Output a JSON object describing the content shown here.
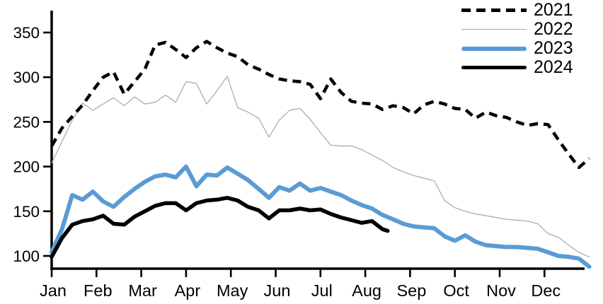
{
  "chart_data": {
    "type": "line",
    "title": "",
    "xlabel": "",
    "ylabel": "",
    "x_unit": "months, 0 = start of January, 12 = end of December",
    "x_axis": {
      "tick_labels": [
        "Jan",
        "Feb",
        "Mar",
        "Apr",
        "May",
        "Jun",
        "Jul",
        "Aug",
        "Sep",
        "Oct",
        "Nov",
        "Dec"
      ],
      "range": [
        0,
        12
      ]
    },
    "y_axis": {
      "tick_values": [
        100,
        150,
        200,
        250,
        300,
        350
      ],
      "tick_labels": [
        "100",
        "150",
        "200",
        "250",
        "300",
        "350"
      ],
      "range": [
        86,
        375
      ]
    },
    "grid": false,
    "legend_position": "top-right",
    "series": [
      {
        "name": "2021",
        "color": "#000000",
        "style": "dashed",
        "width": 4.5,
        "points": [
          [
            0.0,
            223
          ],
          [
            0.23,
            243
          ],
          [
            0.46,
            256
          ],
          [
            0.69,
            269
          ],
          [
            0.92,
            285
          ],
          [
            1.15,
            300
          ],
          [
            1.38,
            306
          ],
          [
            1.62,
            281
          ],
          [
            1.85,
            295
          ],
          [
            2.08,
            309
          ],
          [
            2.31,
            336
          ],
          [
            2.54,
            339
          ],
          [
            2.77,
            331
          ],
          [
            3.0,
            322
          ],
          [
            3.23,
            333
          ],
          [
            3.46,
            340
          ],
          [
            3.69,
            333
          ],
          [
            3.92,
            327
          ],
          [
            4.15,
            323
          ],
          [
            4.38,
            314
          ],
          [
            4.62,
            309
          ],
          [
            4.85,
            303
          ],
          [
            5.08,
            298
          ],
          [
            5.31,
            296
          ],
          [
            5.54,
            295
          ],
          [
            5.77,
            292
          ],
          [
            6.0,
            276
          ],
          [
            6.23,
            298
          ],
          [
            6.46,
            283
          ],
          [
            6.69,
            273
          ],
          [
            6.92,
            271
          ],
          [
            7.15,
            270
          ],
          [
            7.38,
            264
          ],
          [
            7.62,
            268
          ],
          [
            7.85,
            266
          ],
          [
            8.08,
            259
          ],
          [
            8.31,
            269
          ],
          [
            8.54,
            273
          ],
          [
            8.77,
            270
          ],
          [
            9.0,
            265
          ],
          [
            9.23,
            264
          ],
          [
            9.46,
            254
          ],
          [
            9.69,
            261
          ],
          [
            9.92,
            257
          ],
          [
            10.15,
            255
          ],
          [
            10.38,
            250
          ],
          [
            10.62,
            246
          ],
          [
            10.85,
            248
          ],
          [
            11.08,
            247
          ],
          [
            11.31,
            230
          ],
          [
            11.54,
            214
          ],
          [
            11.77,
            199
          ],
          [
            12.0,
            209
          ]
        ]
      },
      {
        "name": "2022",
        "color": "#a6a6a6",
        "style": "solid",
        "width": 1.2,
        "points": [
          [
            0.0,
            204
          ],
          [
            0.23,
            228
          ],
          [
            0.46,
            252
          ],
          [
            0.69,
            271
          ],
          [
            0.92,
            263
          ],
          [
            1.15,
            270
          ],
          [
            1.38,
            277
          ],
          [
            1.62,
            268
          ],
          [
            1.85,
            278
          ],
          [
            2.08,
            270
          ],
          [
            2.31,
            272
          ],
          [
            2.54,
            280
          ],
          [
            2.77,
            272
          ],
          [
            3.0,
            295
          ],
          [
            3.23,
            293
          ],
          [
            3.46,
            270
          ],
          [
            3.69,
            285
          ],
          [
            3.92,
            301
          ],
          [
            4.15,
            266
          ],
          [
            4.38,
            261
          ],
          [
            4.62,
            254
          ],
          [
            4.85,
            233
          ],
          [
            5.08,
            252
          ],
          [
            5.31,
            263
          ],
          [
            5.54,
            265
          ],
          [
            5.77,
            253
          ],
          [
            6.0,
            238
          ],
          [
            6.23,
            224
          ],
          [
            6.46,
            223
          ],
          [
            6.69,
            223
          ],
          [
            6.92,
            219
          ],
          [
            7.15,
            213
          ],
          [
            7.38,
            207
          ],
          [
            7.62,
            199
          ],
          [
            7.85,
            194
          ],
          [
            8.08,
            190
          ],
          [
            8.31,
            187
          ],
          [
            8.54,
            184
          ],
          [
            8.77,
            162
          ],
          [
            9.0,
            154
          ],
          [
            9.23,
            150
          ],
          [
            9.46,
            147
          ],
          [
            9.69,
            145
          ],
          [
            9.92,
            143
          ],
          [
            10.15,
            141
          ],
          [
            10.38,
            140
          ],
          [
            10.62,
            139
          ],
          [
            10.85,
            136
          ],
          [
            11.08,
            125
          ],
          [
            11.31,
            121
          ],
          [
            11.54,
            112
          ],
          [
            11.77,
            104
          ],
          [
            12.0,
            99
          ]
        ]
      },
      {
        "name": "2023",
        "color": "#5b9bd5",
        "style": "solid",
        "width": 6,
        "points": [
          [
            0.0,
            104
          ],
          [
            0.23,
            130
          ],
          [
            0.46,
            168
          ],
          [
            0.69,
            163
          ],
          [
            0.92,
            172
          ],
          [
            1.15,
            161
          ],
          [
            1.38,
            155
          ],
          [
            1.62,
            166
          ],
          [
            1.85,
            175
          ],
          [
            2.08,
            183
          ],
          [
            2.31,
            189
          ],
          [
            2.54,
            191
          ],
          [
            2.77,
            188
          ],
          [
            3.0,
            200
          ],
          [
            3.23,
            178
          ],
          [
            3.46,
            191
          ],
          [
            3.69,
            190
          ],
          [
            3.92,
            199
          ],
          [
            4.15,
            192
          ],
          [
            4.38,
            185
          ],
          [
            4.62,
            175
          ],
          [
            4.85,
            165
          ],
          [
            5.08,
            177
          ],
          [
            5.31,
            173
          ],
          [
            5.54,
            181
          ],
          [
            5.77,
            173
          ],
          [
            6.0,
            176
          ],
          [
            6.23,
            172
          ],
          [
            6.46,
            168
          ],
          [
            6.69,
            162
          ],
          [
            6.92,
            157
          ],
          [
            7.15,
            153
          ],
          [
            7.38,
            146
          ],
          [
            7.62,
            141
          ],
          [
            7.85,
            136
          ],
          [
            8.08,
            133
          ],
          [
            8.31,
            132
          ],
          [
            8.54,
            131
          ],
          [
            8.77,
            122
          ],
          [
            9.0,
            117
          ],
          [
            9.23,
            123
          ],
          [
            9.46,
            116
          ],
          [
            9.69,
            112
          ],
          [
            9.92,
            111
          ],
          [
            10.15,
            110
          ],
          [
            10.38,
            110
          ],
          [
            10.62,
            109
          ],
          [
            10.85,
            108
          ],
          [
            11.08,
            104
          ],
          [
            11.31,
            100
          ],
          [
            11.54,
            99
          ],
          [
            11.77,
            97
          ],
          [
            12.0,
            88
          ]
        ]
      },
      {
        "name": "2024",
        "color": "#000000",
        "style": "solid",
        "width": 5.5,
        "points": [
          [
            0.0,
            99
          ],
          [
            0.23,
            120
          ],
          [
            0.46,
            135
          ],
          [
            0.69,
            139
          ],
          [
            0.92,
            141
          ],
          [
            1.15,
            145
          ],
          [
            1.38,
            136
          ],
          [
            1.62,
            135
          ],
          [
            1.85,
            144
          ],
          [
            2.08,
            150
          ],
          [
            2.31,
            156
          ],
          [
            2.54,
            159
          ],
          [
            2.77,
            159
          ],
          [
            3.0,
            151
          ],
          [
            3.23,
            159
          ],
          [
            3.46,
            162
          ],
          [
            3.69,
            163
          ],
          [
            3.92,
            165
          ],
          [
            4.15,
            162
          ],
          [
            4.38,
            155
          ],
          [
            4.62,
            151
          ],
          [
            4.85,
            142
          ],
          [
            5.08,
            151
          ],
          [
            5.31,
            151
          ],
          [
            5.54,
            153
          ],
          [
            5.77,
            151
          ],
          [
            6.0,
            152
          ],
          [
            6.23,
            147
          ],
          [
            6.46,
            143
          ],
          [
            6.69,
            140
          ],
          [
            6.92,
            137
          ],
          [
            7.15,
            139
          ],
          [
            7.38,
            130
          ],
          [
            7.5,
            128
          ]
        ]
      }
    ]
  }
}
